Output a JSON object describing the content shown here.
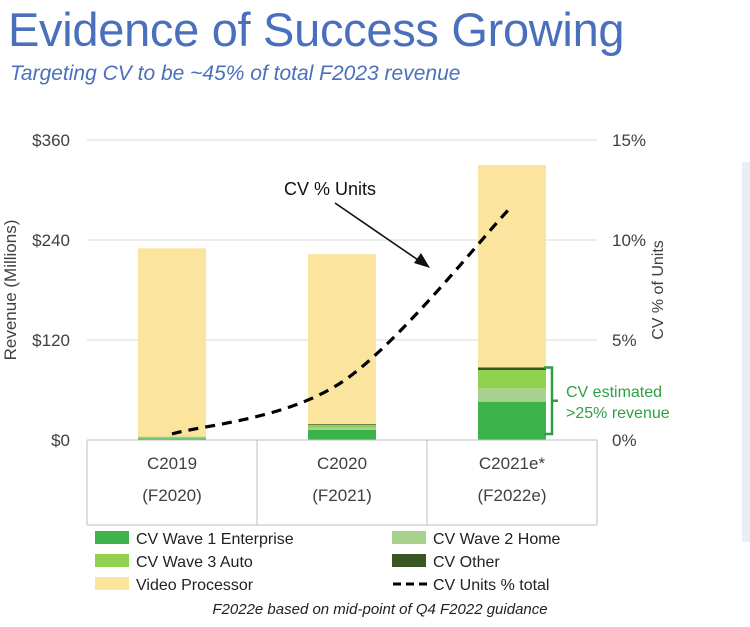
{
  "page": {
    "title": "Evidence of Success Growing",
    "subtitle": "Targeting CV to be ~45% of total F2023 revenue",
    "footnote": "F2022e based on mid-point of Q4 F2022 guidance"
  },
  "chart_data": {
    "type": "bar",
    "stacked": true,
    "categories": [
      "C2019",
      "C2020",
      "C2021e*"
    ],
    "category_sublabels": [
      "(F2020)",
      "(F2021)",
      "(F2022e)"
    ],
    "ylabel": "Revenue (Millions)",
    "y2label": "CV % of Units",
    "ylim": [
      0,
      360
    ],
    "y2lim": [
      0,
      15
    ],
    "yticks": [
      "$0",
      "$120",
      "$240",
      "$360"
    ],
    "y2ticks": [
      "0%",
      "5%",
      "10%",
      "15%"
    ],
    "series": [
      {
        "name": "CV Wave 1 Enterprise",
        "color": "#3cb44b",
        "values": [
          2,
          12,
          46
        ]
      },
      {
        "name": "CV Wave 2 Home",
        "color": "#a9d18e",
        "values": [
          1,
          3,
          16
        ]
      },
      {
        "name": "CV Wave 3 Auto",
        "color": "#92d050",
        "values": [
          1,
          3,
          22
        ]
      },
      {
        "name": "CV Other",
        "color": "#375623",
        "values": [
          0,
          1,
          3
        ]
      },
      {
        "name": "Video Processor",
        "color": "#fae49e",
        "values": [
          226,
          204,
          243
        ]
      }
    ],
    "line": {
      "name": "CV Units % total",
      "values": [
        0.3,
        2.9,
        11.7
      ],
      "color": "#000000"
    },
    "annotations": [
      {
        "text": "CV % Units"
      },
      {
        "text_lines": [
          "CV estimated",
          ">25% revenue"
        ],
        "color": "#2ea043"
      }
    ],
    "legend": [
      {
        "label": "CV Wave 1 Enterprise",
        "type": "swatch",
        "color": "#3cb44b"
      },
      {
        "label": "CV Wave 2 Home",
        "type": "swatch",
        "color": "#a9d18e"
      },
      {
        "label": "CV Wave 3 Auto",
        "type": "swatch",
        "color": "#92d050"
      },
      {
        "label": "CV Other",
        "type": "swatch",
        "color": "#375623"
      },
      {
        "label": "Video Processor",
        "type": "swatch",
        "color": "#fae49e"
      },
      {
        "label": "CV Units % total",
        "type": "dashed-line",
        "color": "#000000"
      }
    ]
  }
}
